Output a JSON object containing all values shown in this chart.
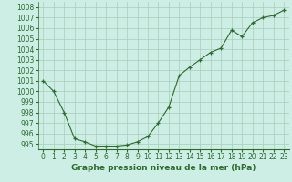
{
  "x": [
    0,
    1,
    2,
    3,
    4,
    5,
    6,
    7,
    8,
    9,
    10,
    11,
    12,
    13,
    14,
    15,
    16,
    17,
    18,
    19,
    20,
    21,
    22,
    23
  ],
  "y": [
    1001.0,
    1000.0,
    998.0,
    995.5,
    995.2,
    994.8,
    994.8,
    994.8,
    994.9,
    995.2,
    995.7,
    997.0,
    998.5,
    1001.5,
    1002.3,
    1003.0,
    1003.7,
    1004.1,
    1005.8,
    1005.2,
    1006.5,
    1007.0,
    1007.2,
    1007.7
  ],
  "ylim": [
    994.5,
    1008.5
  ],
  "yticks": [
    995,
    996,
    997,
    998,
    999,
    1000,
    1001,
    1002,
    1003,
    1004,
    1005,
    1006,
    1007,
    1008
  ],
  "xticks": [
    0,
    1,
    2,
    3,
    4,
    5,
    6,
    7,
    8,
    9,
    10,
    11,
    12,
    13,
    14,
    15,
    16,
    17,
    18,
    19,
    20,
    21,
    22,
    23
  ],
  "xlabel": "Graphe pression niveau de la mer (hPa)",
  "line_color": "#2d6a2d",
  "marker_color": "#2d6a2d",
  "bg_color": "#cceee4",
  "grid_color": "#aaccbb",
  "tick_label_color": "#2d6a2d",
  "xlabel_color": "#2d6a2d",
  "xlabel_fontsize": 6.5,
  "tick_fontsize": 5.5
}
